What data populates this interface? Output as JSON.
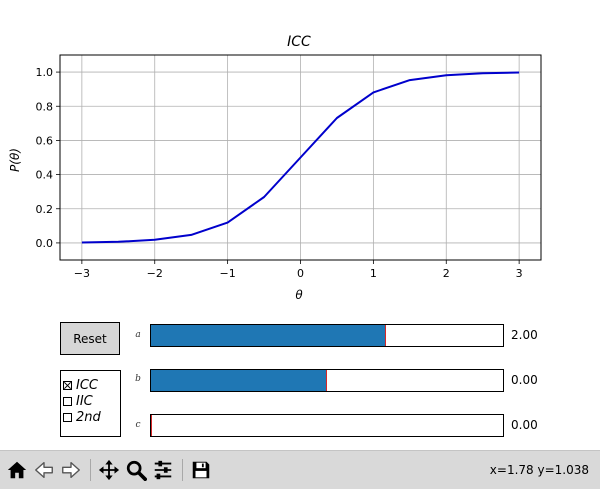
{
  "chart_data": {
    "type": "line",
    "title": "ICC",
    "xlabel": "θ",
    "ylabel": "P(θ)",
    "xlim": [
      -3.3,
      3.3
    ],
    "ylim": [
      -0.1,
      1.1
    ],
    "xticks": [
      -3,
      -2,
      -1,
      0,
      1,
      2,
      3
    ],
    "xtick_labels": [
      "−3",
      "−2",
      "−1",
      "0",
      "1",
      "2",
      "3"
    ],
    "yticks": [
      0.0,
      0.2,
      0.4,
      0.6,
      0.8,
      1.0
    ],
    "ytick_labels": [
      "0.0",
      "0.2",
      "0.4",
      "0.6",
      "0.8",
      "1.0"
    ],
    "grid": true,
    "series": [
      {
        "color": "#0000cc",
        "x": [
          -3.0,
          -2.5,
          -2.0,
          -1.5,
          -1.0,
          -0.5,
          0.0,
          0.5,
          1.0,
          1.5,
          2.0,
          2.5,
          3.0
        ],
        "y": [
          0.0025,
          0.0067,
          0.018,
          0.047,
          0.119,
          0.269,
          0.5,
          0.731,
          0.881,
          0.953,
          0.982,
          0.993,
          0.9975
        ]
      }
    ]
  },
  "controls": {
    "reset_label": "Reset",
    "checkboxes": [
      {
        "label": "ICC",
        "checked": true
      },
      {
        "label": "IIC",
        "checked": false
      },
      {
        "label": "2nd",
        "checked": false
      }
    ],
    "sliders": [
      {
        "label": "a",
        "value": 2.0,
        "value_text": "2.00",
        "min": 0,
        "max": 3,
        "fill_color": "#1f77b4"
      },
      {
        "label": "b",
        "value": 0.0,
        "value_text": "0.00",
        "min": -3,
        "max": 3,
        "fill_color": "#1f77b4"
      },
      {
        "label": "c",
        "value": 0.0,
        "value_text": "0.00",
        "min": 0,
        "max": 1,
        "fill_color": "#1f77b4"
      }
    ]
  },
  "toolbar": {
    "tools": [
      "home-icon",
      "back-icon",
      "forward-icon",
      "pan-icon",
      "zoom-icon",
      "configure-subplots-icon",
      "save-icon"
    ],
    "coords": "x=1.78 y=1.038"
  }
}
